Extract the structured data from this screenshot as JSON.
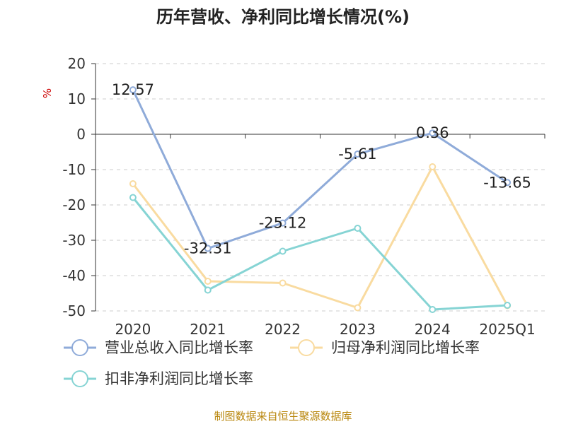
{
  "chart_data": {
    "type": "line",
    "title": "历年营收、净利同比增长情况(%)",
    "ylabel": "%",
    "categories": [
      "2020",
      "2021",
      "2022",
      "2023",
      "2024",
      "2025Q1"
    ],
    "ylim": [
      -50,
      20
    ],
    "yticks": [
      20,
      10,
      0,
      -10,
      -20,
      -30,
      -40,
      -50
    ],
    "grid": true,
    "legend_position": "bottom-left",
    "series": [
      {
        "name": "营业总收入同比增长率",
        "color": "#8fabd9",
        "values": [
          12.57,
          -32.31,
          -25.12,
          -5.61,
          0.36,
          -13.65
        ],
        "labels": [
          "12.57",
          "-32.31",
          "-25.12",
          "-5.61",
          "0.36",
          "-13.65"
        ]
      },
      {
        "name": "归母净利润同比增长率",
        "color": "#f9dba0",
        "values": [
          -14.0,
          -41.6,
          -42.1,
          -49.1,
          -9.2,
          -48.5
        ]
      },
      {
        "name": "扣非净利润同比增长率",
        "color": "#86d4d4",
        "values": [
          -17.9,
          -44.1,
          -33.1,
          -26.6,
          -49.6,
          -48.4
        ]
      }
    ]
  },
  "source": "制图数据来自恒生聚源数据库"
}
